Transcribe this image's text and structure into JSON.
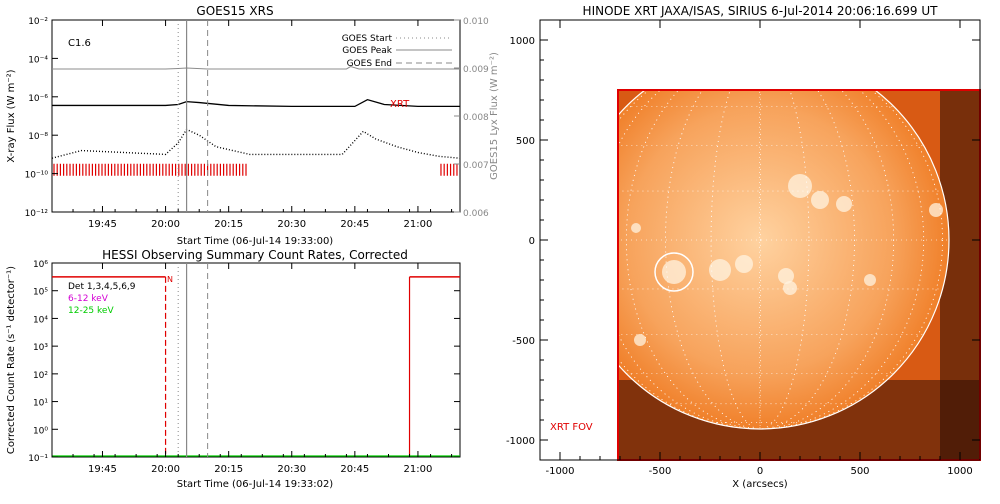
{
  "chart_data": [
    {
      "type": "line",
      "title": "GOES15 XRS",
      "xlabel": "Start Time (06-Jul-14 19:33:00)",
      "ylabel_left": "X-ray Flux (W m⁻²)",
      "ylabel_right": "GOES15 Lyx Flux (W m⁻²)",
      "x_ticks": [
        "19:45",
        "20:00",
        "20:15",
        "20:30",
        "20:45",
        "21:00"
      ],
      "y_ticks_left": [
        "10⁻²",
        "10⁻⁴",
        "10⁻⁶",
        "10⁻⁸",
        "10⁻¹⁰",
        "10⁻¹²"
      ],
      "y_ticks_right": [
        "0.010",
        "0.009",
        "0.008",
        "0.007",
        "0.006"
      ],
      "annotation_class": "C1.6",
      "annotation_xrt": "XRT",
      "legend": [
        {
          "label": "GOES Start",
          "style": "dotted",
          "color": "#888888"
        },
        {
          "label": "GOES Peak",
          "style": "solid",
          "color": "#888888"
        },
        {
          "label": "GOES End",
          "style": "dashed",
          "color": "#888888"
        }
      ],
      "xrange": [
        "19:33",
        "21:10"
      ],
      "ylim_log": [
        -12,
        -2
      ],
      "y2lim": [
        0.006,
        0.01
      ],
      "goes_start": "20:03",
      "goes_peak": "20:05",
      "goes_end": "20:10",
      "xrt_intervals": [
        [
          "19:33",
          "20:20"
        ],
        [
          "21:05",
          "21:10"
        ]
      ],
      "series": [
        {
          "name": "Lyx",
          "color": "#8c8c8c",
          "x": [
            "19:33",
            "19:45",
            "20:00",
            "20:03",
            "20:05",
            "20:10",
            "20:20",
            "20:30",
            "20:43",
            "20:44",
            "20:46",
            "21:00",
            "21:10"
          ],
          "values": [
            0.00898,
            0.00898,
            0.00898,
            0.00899,
            0.009,
            0.00898,
            0.00898,
            0.00898,
            0.00898,
            0.00903,
            0.00898,
            0.00898,
            0.00898
          ]
        },
        {
          "name": "long",
          "color": "#000000",
          "x": [
            "19:33",
            "19:45",
            "20:00",
            "20:03",
            "20:05",
            "20:08",
            "20:15",
            "20:30",
            "20:45",
            "20:48",
            "20:52",
            "21:00",
            "21:10"
          ],
          "log_values": [
            -6.45,
            -6.45,
            -6.45,
            -6.4,
            -6.25,
            -6.3,
            -6.45,
            -6.5,
            -6.5,
            -6.15,
            -6.4,
            -6.5,
            -6.5
          ]
        },
        {
          "name": "short",
          "color": "#000000",
          "x": [
            "19:33",
            "19:40",
            "19:50",
            "20:00",
            "20:03",
            "20:05",
            "20:08",
            "20:12",
            "20:20",
            "20:30",
            "20:42",
            "20:47",
            "20:50",
            "20:55",
            "21:00",
            "21:05",
            "21:10"
          ],
          "log_values": [
            -9.2,
            -8.8,
            -8.9,
            -9.0,
            -8.4,
            -7.7,
            -8.0,
            -8.6,
            -9.0,
            -9.0,
            -9.0,
            -7.8,
            -8.2,
            -8.6,
            -8.9,
            -9.1,
            -9.2
          ]
        }
      ]
    },
    {
      "type": "line",
      "title": "HESSI Observing Summary Count Rates, Corrected",
      "xlabel": "Start Time (06-Jul-14 19:33:02)",
      "ylabel": "Corrected Count Rate (s⁻¹ detector⁻¹)",
      "x_ticks": [
        "19:45",
        "20:00",
        "20:15",
        "20:30",
        "20:45",
        "21:00"
      ],
      "y_ticks": [
        "10⁶",
        "10⁵",
        "10⁴",
        "10³",
        "10²",
        "10¹",
        "10⁰",
        "10⁻¹"
      ],
      "ylim_log": [
        -1,
        6
      ],
      "annotation_n": "N",
      "legend": [
        {
          "label": "Det 1,3,4,5,6,9",
          "color": "#000000"
        },
        {
          "label": "6-12 keV",
          "color": "#d400d4"
        },
        {
          "label": "12-25 keV",
          "color": "#00cc00"
        }
      ],
      "night_intervals": [
        [
          "19:33",
          "20:00"
        ],
        [
          "20:58",
          "21:10"
        ]
      ],
      "high_value_log": 5.5,
      "low_value_log": -1
    },
    {
      "type": "image",
      "title": "HINODE XRT JAXA/ISAS, SIRIUS  6-Jul-2014 20:06:16.699 UT",
      "xlabel": "X (arcsecs)",
      "ylabel": "",
      "x_ticks": [
        "-1000",
        "-500",
        "0",
        "500",
        "1000"
      ],
      "y_ticks": [
        "1000",
        "500",
        "0",
        "-500",
        "-1000"
      ],
      "xlim": [
        -1100,
        1100
      ],
      "ylim": [
        -1100,
        1100
      ],
      "solar_radius_arcsec": 945,
      "flare_location": [
        -430,
        -160
      ],
      "fov_label": "XRT FOV",
      "fov_bounds": {
        "x": [
          -710,
          1100
        ],
        "y": [
          -1100,
          750
        ]
      }
    }
  ]
}
